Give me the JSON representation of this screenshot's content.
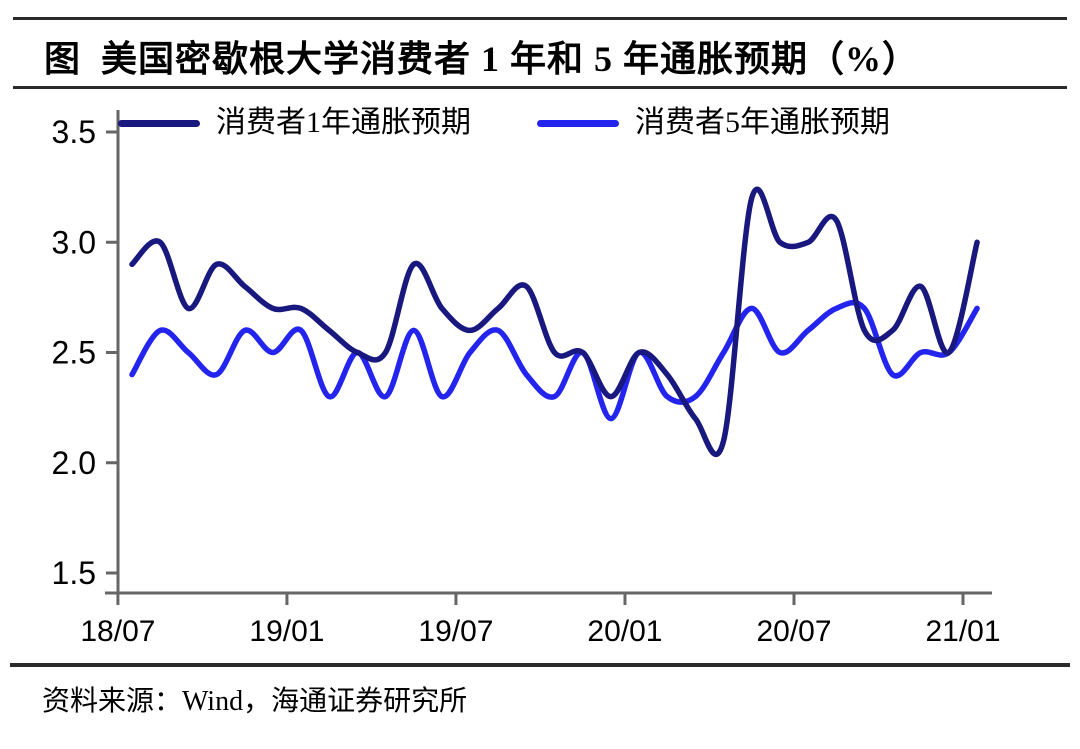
{
  "header": {
    "title": "图  美国密歇根大学消费者 1 年和 5 年通胀预期（%）"
  },
  "legend": [
    {
      "label": "消费者1年通胀预期",
      "color": "#18187E"
    },
    {
      "label": "消费者5年通胀预期",
      "color": "#2424EF"
    }
  ],
  "chart_data": {
    "type": "line",
    "title": "美国密歇根大学消费者1年和5年通胀预期（%）",
    "categories": [
      "18/07",
      "18/08",
      "18/09",
      "18/10",
      "18/11",
      "18/12",
      "19/01",
      "19/02",
      "19/03",
      "19/04",
      "19/05",
      "19/06",
      "19/07",
      "19/08",
      "19/09",
      "19/10",
      "19/11",
      "19/12",
      "20/01",
      "20/02",
      "20/03",
      "20/04",
      "20/05",
      "20/06",
      "20/07",
      "20/08",
      "20/09",
      "20/10",
      "20/11",
      "20/12",
      "21/01"
    ],
    "series": [
      {
        "name": "消费者1年通胀预期",
        "color": "#18187E",
        "values": [
          2.9,
          3.0,
          2.7,
          2.9,
          2.8,
          2.7,
          2.7,
          2.6,
          2.5,
          2.5,
          2.9,
          2.7,
          2.6,
          2.7,
          2.8,
          2.5,
          2.5,
          2.3,
          2.5,
          2.4,
          2.2,
          2.1,
          3.2,
          3.0,
          3.0,
          3.1,
          2.6,
          2.6,
          2.8,
          2.5,
          3.0
        ]
      },
      {
        "name": "消费者5年通胀预期",
        "color": "#2424EF",
        "values": [
          2.4,
          2.6,
          2.5,
          2.4,
          2.6,
          2.5,
          2.6,
          2.3,
          2.5,
          2.3,
          2.6,
          2.3,
          2.5,
          2.6,
          2.4,
          2.3,
          2.5,
          2.2,
          2.5,
          2.3,
          2.3,
          2.5,
          2.7,
          2.5,
          2.6,
          2.7,
          2.7,
          2.4,
          2.5,
          2.5,
          2.7
        ]
      }
    ],
    "ylim": [
      1.5,
      3.5
    ],
    "y_tick_labels": [
      "3.5",
      "3.0",
      "2.5",
      "2.0",
      "1.5"
    ],
    "x_tick_labels": [
      "18/07",
      "19/01",
      "19/07",
      "20/01",
      "20/07",
      "21/01"
    ],
    "x_tick_indices": [
      0,
      6,
      12,
      18,
      24,
      30
    ],
    "grid": false,
    "legend_position": "top",
    "smoothed": true,
    "axis_color": "#666666"
  },
  "footer": {
    "source": "资料来源：Wind，海通证券研究所"
  }
}
